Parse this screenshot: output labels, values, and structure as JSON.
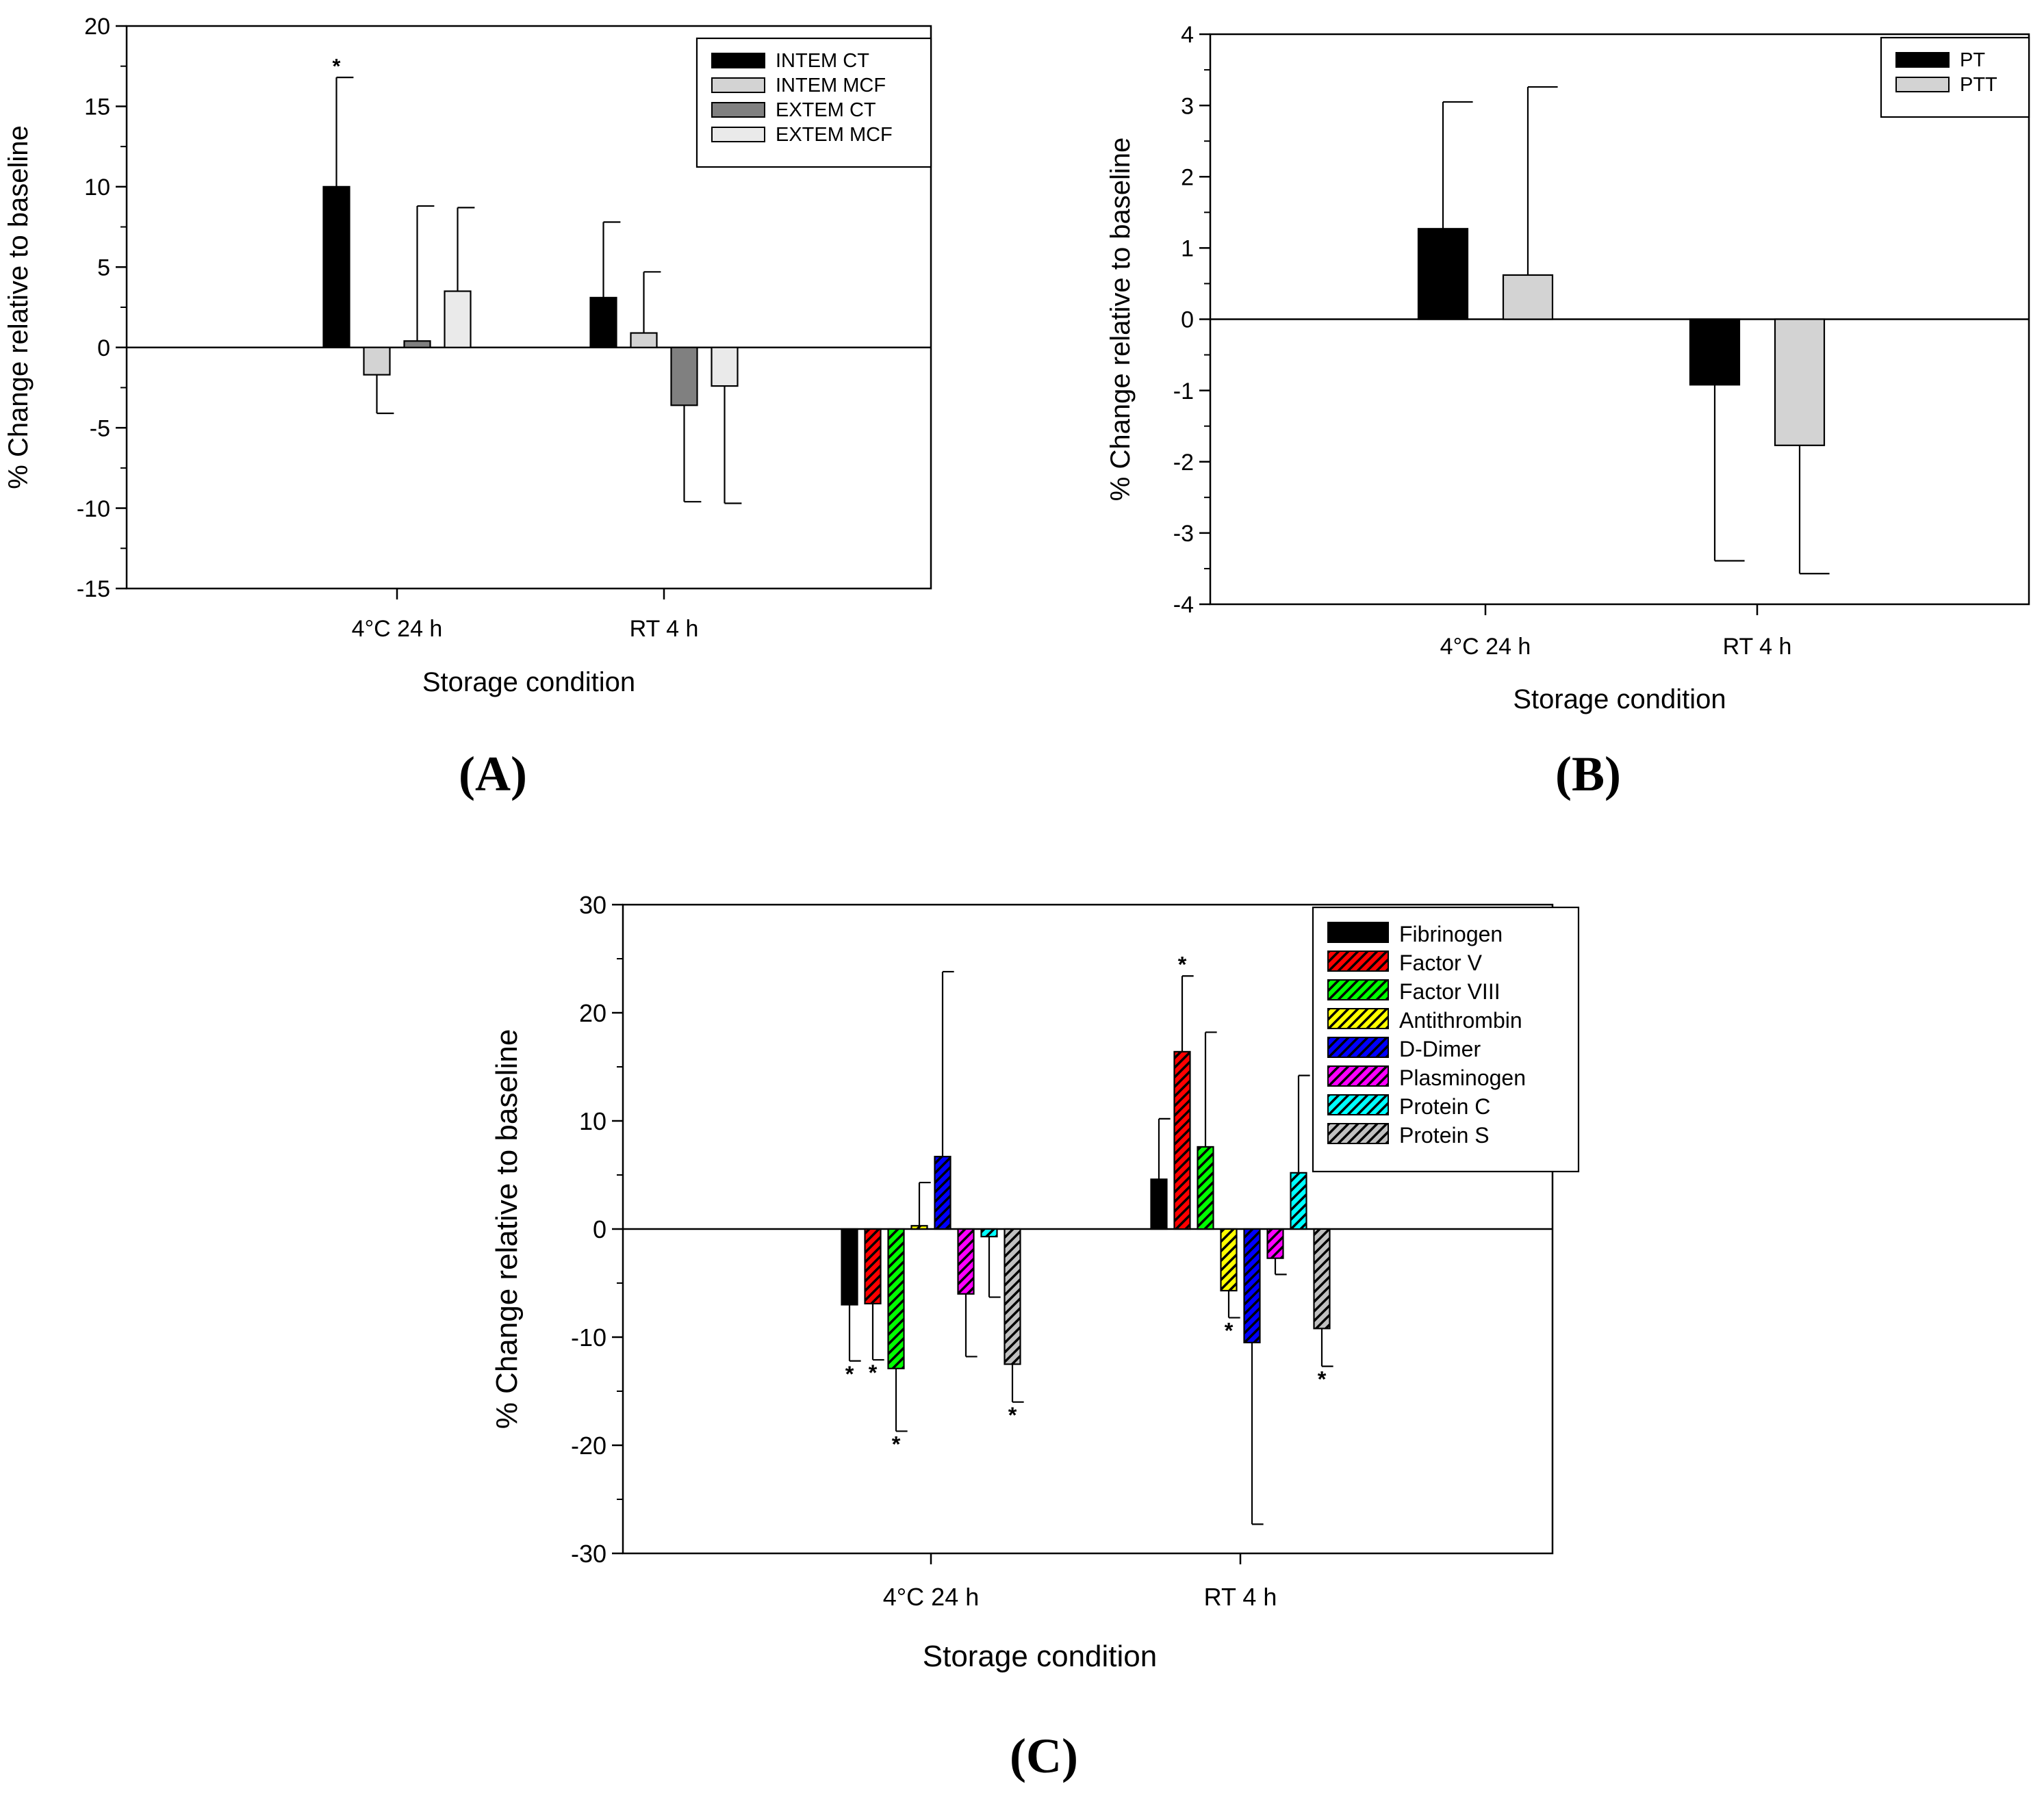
{
  "panel_labels": [
    "A",
    "B",
    "C"
  ],
  "chart_data": [
    {
      "id": "A",
      "type": "bar",
      "title": "",
      "xlabel": "Storage condition",
      "ylabel": "% Change relative to baseline",
      "ylim": [
        -15,
        20
      ],
      "yticks": [
        -15,
        -10,
        -5,
        0,
        5,
        10,
        15,
        20
      ],
      "categories": [
        "4°C 24 h",
        "RT 4 h"
      ],
      "legend_position": "top-right",
      "series": [
        {
          "name": "INTEM CT",
          "color": "#000000",
          "values": [
            10.0,
            3.1
          ],
          "errors": [
            6.8,
            4.7
          ],
          "significant": [
            true,
            false
          ]
        },
        {
          "name": "INTEM MCF",
          "color": "#d3d3d3",
          "values": [
            -1.7,
            0.9
          ],
          "errors": [
            2.4,
            3.8
          ],
          "significant": [
            false,
            false
          ]
        },
        {
          "name": "EXTEM CT",
          "color": "#808080",
          "values": [
            0.4,
            -3.6
          ],
          "errors": [
            8.4,
            6.0
          ],
          "significant": [
            false,
            false
          ]
        },
        {
          "name": "EXTEM MCF",
          "color": "#eaeaea",
          "values": [
            3.5,
            -2.4
          ],
          "errors": [
            5.2,
            7.3
          ],
          "significant": [
            false,
            false
          ]
        }
      ]
    },
    {
      "id": "B",
      "type": "bar",
      "title": "",
      "xlabel": "Storage condition",
      "ylabel": "% Change relative to baseline",
      "ylim": [
        -4,
        4
      ],
      "yticks": [
        -4,
        -3,
        -2,
        -1,
        0,
        1,
        2,
        3,
        4
      ],
      "categories": [
        "4°C 24 h",
        "RT 4 h"
      ],
      "legend_position": "top-right",
      "series": [
        {
          "name": "PT",
          "color": "#000000",
          "values": [
            1.27,
            -0.92
          ],
          "errors": [
            1.78,
            2.47
          ],
          "significant": [
            false,
            false
          ]
        },
        {
          "name": "PTT",
          "color": "#d3d3d3",
          "values": [
            0.62,
            -1.77
          ],
          "errors": [
            2.64,
            1.8
          ],
          "significant": [
            false,
            false
          ]
        }
      ]
    },
    {
      "id": "C",
      "type": "bar",
      "title": "",
      "xlabel": "Storage condition",
      "ylabel": "% Change relative to baseline",
      "ylim": [
        -30,
        30
      ],
      "yticks": [
        -30,
        -20,
        -10,
        0,
        10,
        20,
        30
      ],
      "categories": [
        "4°C 24 h",
        "RT 4 h"
      ],
      "legend_position": "top-right",
      "series": [
        {
          "name": "Fibrinogen",
          "color": "#000000",
          "pattern": "solid",
          "values": [
            -7.0,
            4.6
          ],
          "errors": [
            5.2,
            5.6
          ],
          "significant": [
            true,
            false
          ]
        },
        {
          "name": "Factor V",
          "color": "#ff0000",
          "pattern": "hatch",
          "values": [
            -6.9,
            16.4
          ],
          "errors": [
            5.2,
            7.0
          ],
          "significant": [
            true,
            true
          ]
        },
        {
          "name": "Factor VIII",
          "color": "#00ff00",
          "pattern": "hatch",
          "values": [
            -12.9,
            7.6
          ],
          "errors": [
            5.8,
            10.6
          ],
          "significant": [
            true,
            false
          ]
        },
        {
          "name": "Antithrombin",
          "color": "#ffff00",
          "pattern": "hatch",
          "values": [
            0.3,
            -5.7
          ],
          "errors": [
            4.0,
            2.5
          ],
          "significant": [
            false,
            true
          ]
        },
        {
          "name": "D-Dimer",
          "color": "#0000ff",
          "pattern": "hatch",
          "values": [
            6.7,
            -10.5
          ],
          "errors": [
            17.1,
            16.8
          ],
          "significant": [
            false,
            false
          ]
        },
        {
          "name": "Plasminogen",
          "color": "#ff00ff",
          "pattern": "hatch",
          "values": [
            -6.0,
            -2.7
          ],
          "errors": [
            5.8,
            1.5
          ],
          "significant": [
            false,
            false
          ]
        },
        {
          "name": "Protein C",
          "color": "#00ffff",
          "pattern": "hatch",
          "values": [
            -0.7,
            5.2
          ],
          "errors": [
            5.6,
            9.0
          ],
          "significant": [
            false,
            false
          ]
        },
        {
          "name": "Protein S",
          "color": "#c0c0c0",
          "pattern": "hatch",
          "values": [
            -12.5,
            -9.2
          ],
          "errors": [
            3.5,
            3.5
          ],
          "significant": [
            true,
            true
          ]
        }
      ]
    }
  ]
}
